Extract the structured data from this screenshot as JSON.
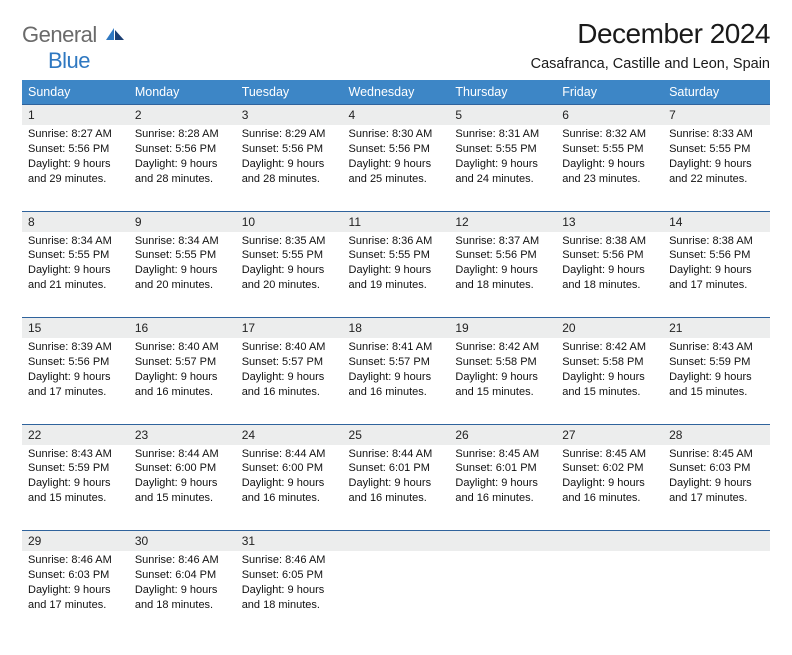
{
  "brand": {
    "general": "General",
    "blue": "Blue"
  },
  "title": "December 2024",
  "location": "Casafranca, Castille and Leon, Spain",
  "colors": {
    "header_bg": "#3d86c6",
    "header_text": "#ffffff",
    "row_divider": "#2f639c",
    "daynum_bg": "#eceded",
    "brand_gray": "#6a6a6a",
    "brand_blue": "#2f78c1",
    "text": "#111111",
    "background": "#ffffff"
  },
  "fonts": {
    "title_size_pt": 21,
    "location_size_pt": 11,
    "weekday_size_pt": 9.5,
    "cell_size_pt": 8.5
  },
  "weekdays": [
    "Sunday",
    "Monday",
    "Tuesday",
    "Wednesday",
    "Thursday",
    "Friday",
    "Saturday"
  ],
  "weeks": [
    [
      {
        "n": "1",
        "sr": "8:27 AM",
        "ss": "5:56 PM",
        "dl": "9 hours and 29 minutes."
      },
      {
        "n": "2",
        "sr": "8:28 AM",
        "ss": "5:56 PM",
        "dl": "9 hours and 28 minutes."
      },
      {
        "n": "3",
        "sr": "8:29 AM",
        "ss": "5:56 PM",
        "dl": "9 hours and 28 minutes."
      },
      {
        "n": "4",
        "sr": "8:30 AM",
        "ss": "5:56 PM",
        "dl": "9 hours and 25 minutes."
      },
      {
        "n": "5",
        "sr": "8:31 AM",
        "ss": "5:55 PM",
        "dl": "9 hours and 24 minutes."
      },
      {
        "n": "6",
        "sr": "8:32 AM",
        "ss": "5:55 PM",
        "dl": "9 hours and 23 minutes."
      },
      {
        "n": "7",
        "sr": "8:33 AM",
        "ss": "5:55 PM",
        "dl": "9 hours and 22 minutes."
      }
    ],
    [
      {
        "n": "8",
        "sr": "8:34 AM",
        "ss": "5:55 PM",
        "dl": "9 hours and 21 minutes."
      },
      {
        "n": "9",
        "sr": "8:34 AM",
        "ss": "5:55 PM",
        "dl": "9 hours and 20 minutes."
      },
      {
        "n": "10",
        "sr": "8:35 AM",
        "ss": "5:55 PM",
        "dl": "9 hours and 20 minutes."
      },
      {
        "n": "11",
        "sr": "8:36 AM",
        "ss": "5:55 PM",
        "dl": "9 hours and 19 minutes."
      },
      {
        "n": "12",
        "sr": "8:37 AM",
        "ss": "5:56 PM",
        "dl": "9 hours and 18 minutes."
      },
      {
        "n": "13",
        "sr": "8:38 AM",
        "ss": "5:56 PM",
        "dl": "9 hours and 18 minutes."
      },
      {
        "n": "14",
        "sr": "8:38 AM",
        "ss": "5:56 PM",
        "dl": "9 hours and 17 minutes."
      }
    ],
    [
      {
        "n": "15",
        "sr": "8:39 AM",
        "ss": "5:56 PM",
        "dl": "9 hours and 17 minutes."
      },
      {
        "n": "16",
        "sr": "8:40 AM",
        "ss": "5:57 PM",
        "dl": "9 hours and 16 minutes."
      },
      {
        "n": "17",
        "sr": "8:40 AM",
        "ss": "5:57 PM",
        "dl": "9 hours and 16 minutes."
      },
      {
        "n": "18",
        "sr": "8:41 AM",
        "ss": "5:57 PM",
        "dl": "9 hours and 16 minutes."
      },
      {
        "n": "19",
        "sr": "8:42 AM",
        "ss": "5:58 PM",
        "dl": "9 hours and 15 minutes."
      },
      {
        "n": "20",
        "sr": "8:42 AM",
        "ss": "5:58 PM",
        "dl": "9 hours and 15 minutes."
      },
      {
        "n": "21",
        "sr": "8:43 AM",
        "ss": "5:59 PM",
        "dl": "9 hours and 15 minutes."
      }
    ],
    [
      {
        "n": "22",
        "sr": "8:43 AM",
        "ss": "5:59 PM",
        "dl": "9 hours and 15 minutes."
      },
      {
        "n": "23",
        "sr": "8:44 AM",
        "ss": "6:00 PM",
        "dl": "9 hours and 15 minutes."
      },
      {
        "n": "24",
        "sr": "8:44 AM",
        "ss": "6:00 PM",
        "dl": "9 hours and 16 minutes."
      },
      {
        "n": "25",
        "sr": "8:44 AM",
        "ss": "6:01 PM",
        "dl": "9 hours and 16 minutes."
      },
      {
        "n": "26",
        "sr": "8:45 AM",
        "ss": "6:01 PM",
        "dl": "9 hours and 16 minutes."
      },
      {
        "n": "27",
        "sr": "8:45 AM",
        "ss": "6:02 PM",
        "dl": "9 hours and 16 minutes."
      },
      {
        "n": "28",
        "sr": "8:45 AM",
        "ss": "6:03 PM",
        "dl": "9 hours and 17 minutes."
      }
    ],
    [
      {
        "n": "29",
        "sr": "8:46 AM",
        "ss": "6:03 PM",
        "dl": "9 hours and 17 minutes."
      },
      {
        "n": "30",
        "sr": "8:46 AM",
        "ss": "6:04 PM",
        "dl": "9 hours and 18 minutes."
      },
      {
        "n": "31",
        "sr": "8:46 AM",
        "ss": "6:05 PM",
        "dl": "9 hours and 18 minutes."
      },
      null,
      null,
      null,
      null
    ]
  ],
  "labels": {
    "sunrise_prefix": "Sunrise: ",
    "sunset_prefix": "Sunset: ",
    "daylight_prefix": "Daylight: "
  }
}
